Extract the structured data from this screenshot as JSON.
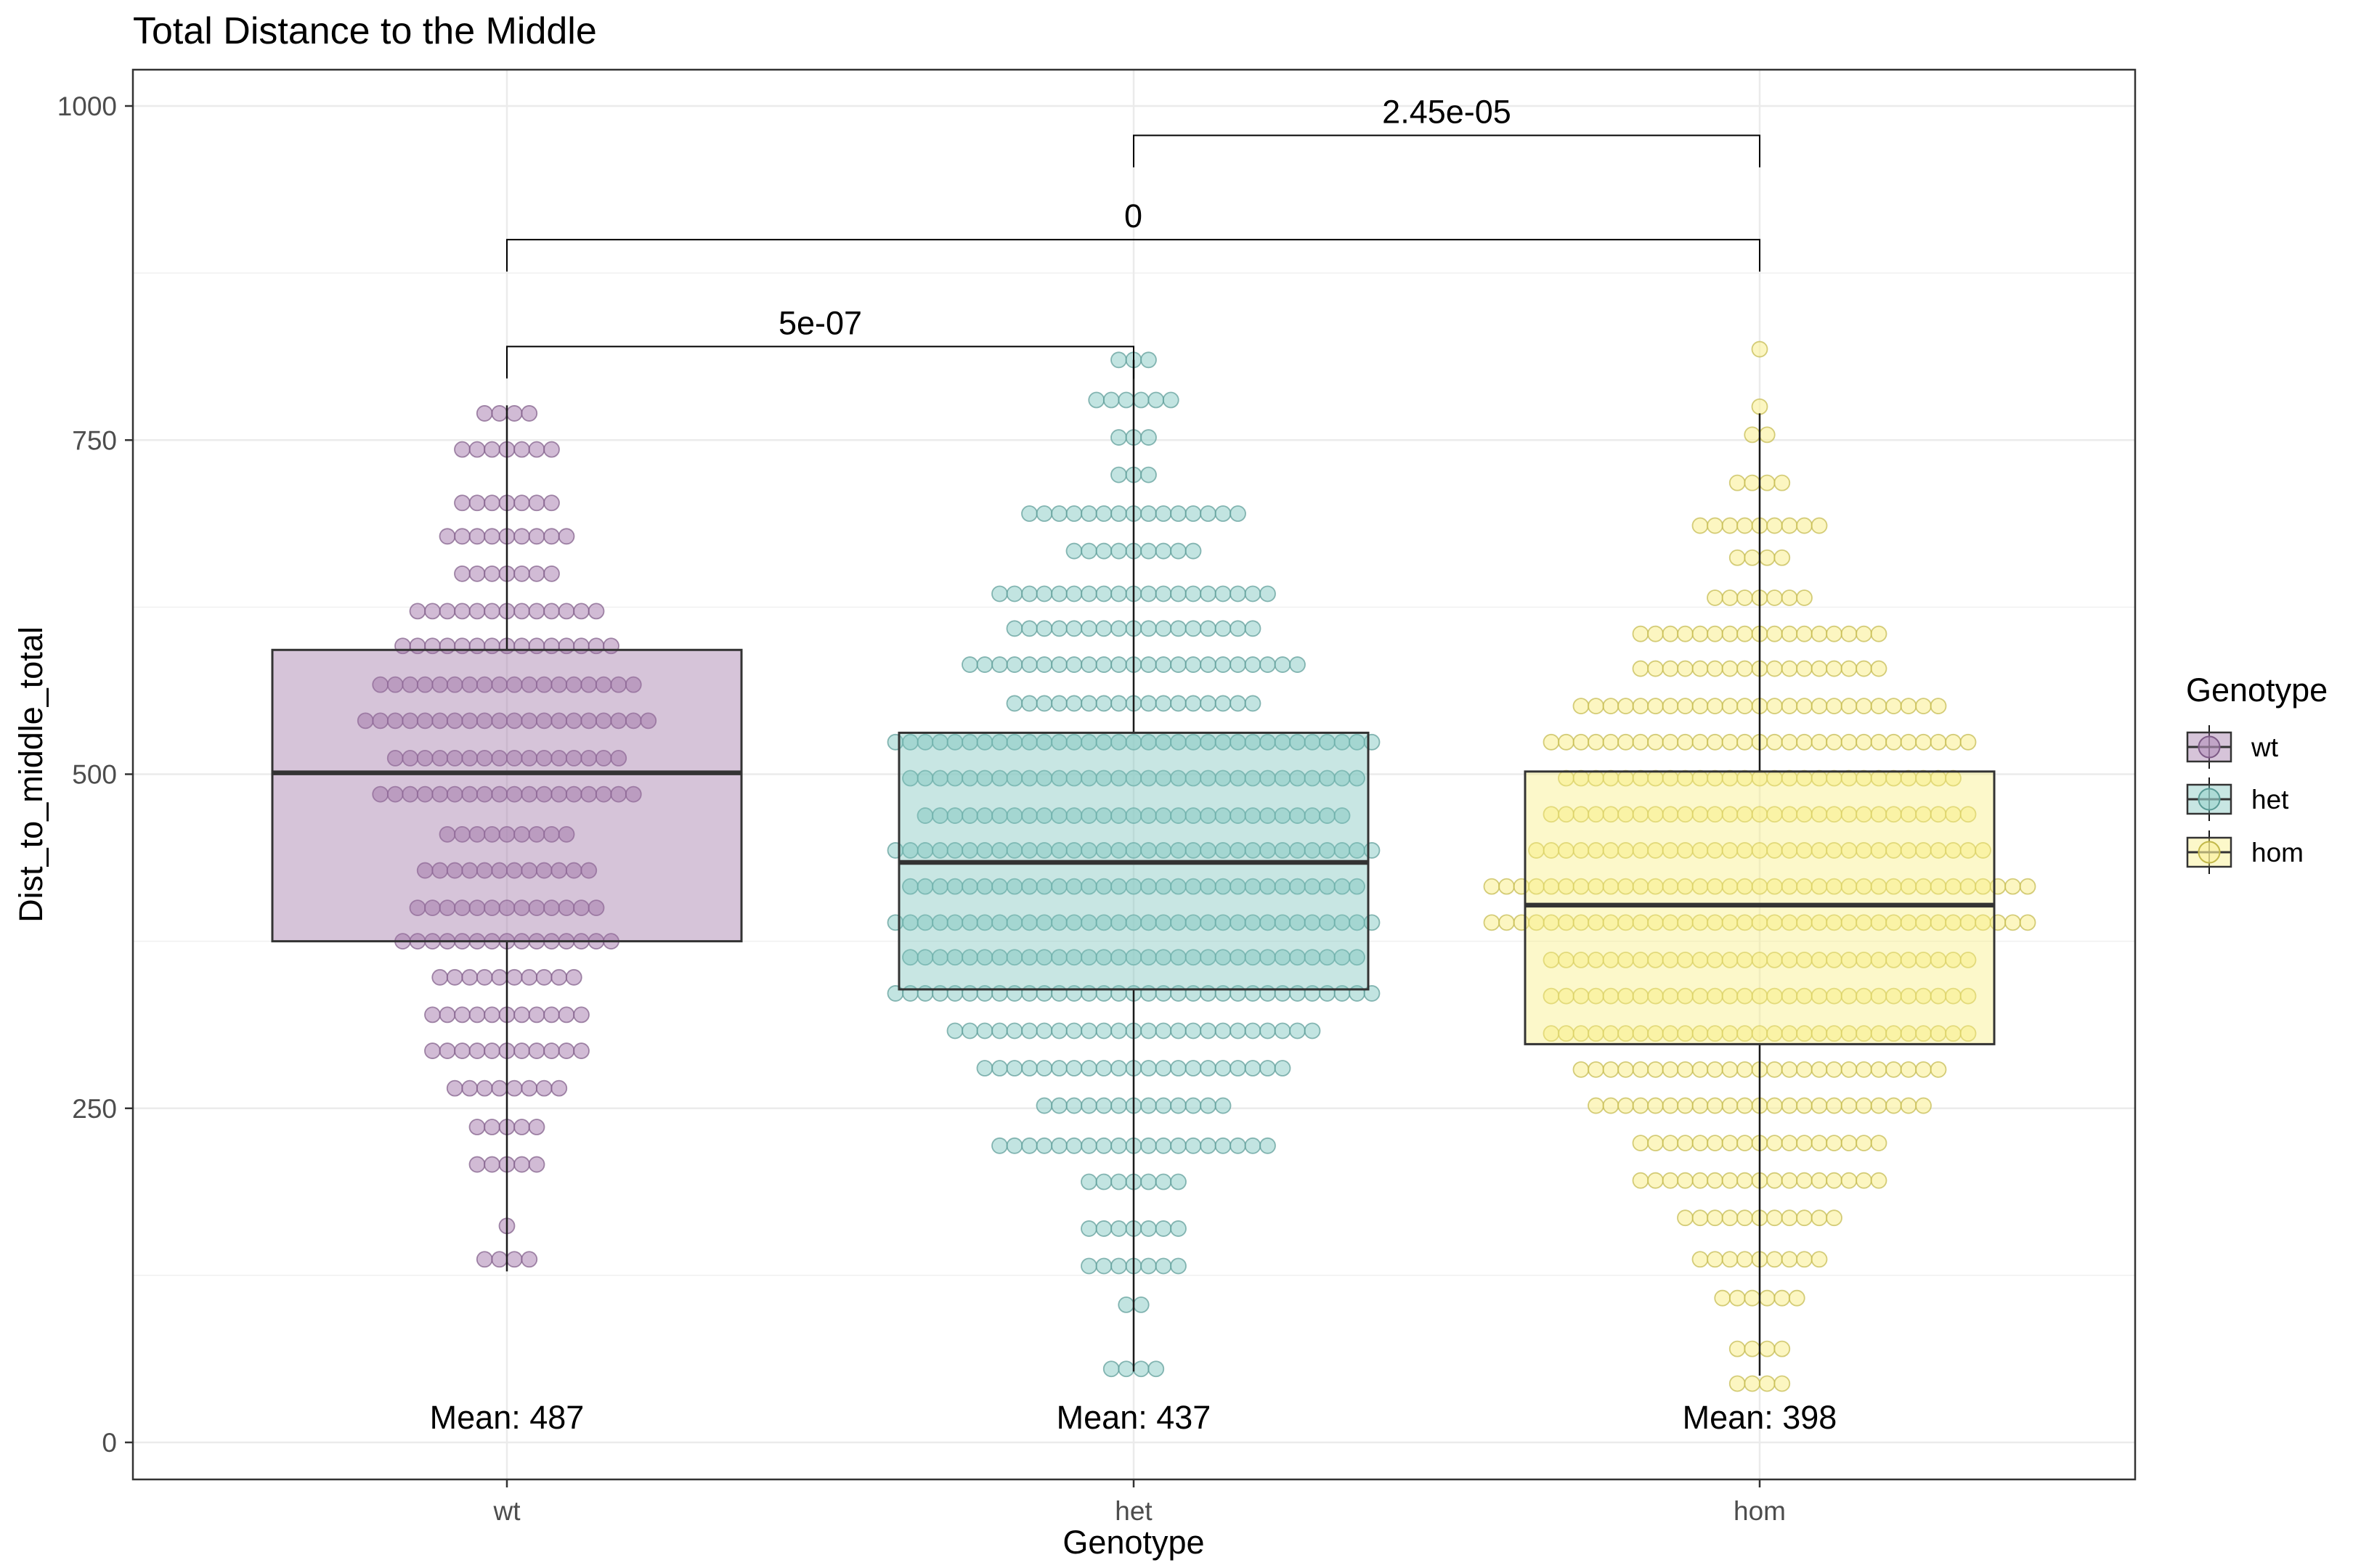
{
  "chart_data": {
    "type": "boxplot-dotplot",
    "title": "Total Distance to the Middle",
    "xlabel": "Genotype",
    "ylabel": "Dist_to_middle_total",
    "categories": [
      "wt",
      "het",
      "hom"
    ],
    "ylim": [
      -30,
      1025
    ],
    "yticks": [
      0,
      250,
      500,
      750,
      1000
    ],
    "grid": true,
    "legend": {
      "title": "Genotype",
      "position": "right",
      "entries": [
        "wt",
        "het",
        "hom"
      ]
    },
    "colors": {
      "wt": "#9e73a5",
      "het": "#7cc3bd",
      "hom": "#f7ee80",
      "wt_dot": "#b591bb",
      "het_dot": "#9dd3ce",
      "hom_dot": "#faf09b"
    },
    "series": [
      {
        "name": "wt",
        "box": {
          "min": 128,
          "q1": 375,
          "median": 501,
          "q3": 593,
          "max": 776
        },
        "mean_label": "Mean: 487",
        "dot_rows": [
          [
            770,
            4
          ],
          [
            743,
            7
          ],
          [
            703,
            7
          ],
          [
            678,
            9
          ],
          [
            650,
            7
          ],
          [
            622,
            13
          ],
          [
            596,
            15
          ],
          [
            567,
            18
          ],
          [
            540,
            20
          ],
          [
            512,
            16
          ],
          [
            485,
            18
          ],
          [
            455,
            9
          ],
          [
            428,
            12
          ],
          [
            400,
            13
          ],
          [
            375,
            15
          ],
          [
            348,
            10
          ],
          [
            320,
            11
          ],
          [
            293,
            11
          ],
          [
            265,
            8
          ],
          [
            236,
            5
          ],
          [
            208,
            5
          ],
          [
            162,
            1
          ],
          [
            137,
            4
          ]
        ]
      },
      {
        "name": "het",
        "box": {
          "min": 53,
          "q1": 339,
          "median": 434,
          "q3": 531,
          "max": 810
        },
        "mean_label": "Mean: 437",
        "dot_rows": [
          [
            810,
            3
          ],
          [
            780,
            6
          ],
          [
            752,
            3
          ],
          [
            724,
            3
          ],
          [
            695,
            15
          ],
          [
            667,
            9
          ],
          [
            635,
            19
          ],
          [
            609,
            17
          ],
          [
            582,
            23
          ],
          [
            553,
            17
          ],
          [
            524,
            33
          ],
          [
            497,
            31
          ],
          [
            469,
            29
          ],
          [
            443,
            33
          ],
          [
            416,
            31
          ],
          [
            389,
            33
          ],
          [
            363,
            31
          ],
          [
            336,
            33
          ],
          [
            308,
            25
          ],
          [
            280,
            21
          ],
          [
            252,
            13
          ],
          [
            222,
            19
          ],
          [
            195,
            7
          ],
          [
            160,
            7
          ],
          [
            132,
            7
          ],
          [
            103,
            2
          ],
          [
            55,
            4
          ]
        ]
      },
      {
        "name": "hom",
        "box": {
          "min": 50,
          "q1": 298,
          "median": 402,
          "q3": 502,
          "max": 770
        },
        "mean_label": "Mean: 398",
        "dot_rows": [
          [
            818,
            1
          ],
          [
            775,
            1
          ],
          [
            754,
            2
          ],
          [
            718,
            4
          ],
          [
            686,
            9
          ],
          [
            662,
            4
          ],
          [
            632,
            7
          ],
          [
            605,
            17
          ],
          [
            579,
            17
          ],
          [
            551,
            25
          ],
          [
            524,
            29
          ],
          [
            497,
            27
          ],
          [
            470,
            29
          ],
          [
            443,
            31
          ],
          [
            416,
            37
          ],
          [
            389,
            37
          ],
          [
            361,
            29
          ],
          [
            334,
            29
          ],
          [
            306,
            29
          ],
          [
            279,
            25
          ],
          [
            252,
            23
          ],
          [
            224,
            17
          ],
          [
            196,
            17
          ],
          [
            168,
            11
          ],
          [
            137,
            9
          ],
          [
            108,
            6
          ],
          [
            70,
            4
          ],
          [
            44,
            4
          ]
        ]
      }
    ],
    "comparisons": [
      {
        "groups": [
          "wt",
          "het"
        ],
        "label": "5e-07",
        "y": 820
      },
      {
        "groups": [
          "wt",
          "hom"
        ],
        "label": "0",
        "y": 900
      },
      {
        "groups": [
          "het",
          "hom"
        ],
        "label": "2.45e-05",
        "y": 978
      }
    ]
  }
}
